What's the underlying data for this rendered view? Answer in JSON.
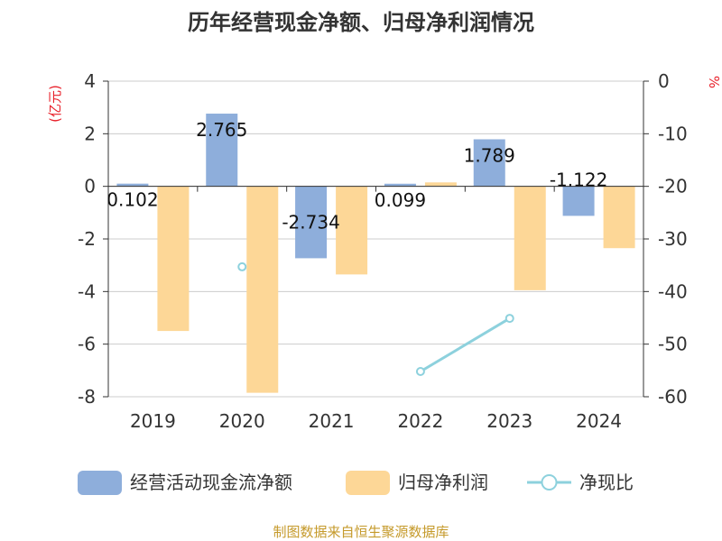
{
  "chart_data": {
    "type": "bar",
    "title": "历年经营现金净额、归母净利润情况",
    "categories": [
      "2019",
      "2020",
      "2021",
      "2022",
      "2023",
      "2024"
    ],
    "left_axis": {
      "label": "(亿元)",
      "ticks": [
        "4",
        "2",
        "0",
        "-2",
        "-4",
        "-6",
        "-8"
      ],
      "range": [
        -8,
        4
      ]
    },
    "right_axis": {
      "label": "%",
      "ticks": [
        "0",
        "-10",
        "-20",
        "-30",
        "-40",
        "-50",
        "-60"
      ],
      "range": [
        -60,
        0
      ]
    },
    "series": [
      {
        "name": "经营活动现金流净额",
        "type": "bar",
        "axis": "left",
        "color": "#8eaedb",
        "values": [
          0.102,
          2.765,
          -2.734,
          0.099,
          1.789,
          -1.122
        ],
        "labels": [
          "0.102",
          "2.765",
          "-2.734",
          "0.099",
          "1.789",
          "-1.122"
        ]
      },
      {
        "name": "归母净利润",
        "type": "bar",
        "axis": "left",
        "color": "#fdd797",
        "values": [
          -5.5,
          -7.85,
          -3.35,
          0.15,
          -3.95,
          -2.35
        ]
      },
      {
        "name": "净现比",
        "type": "line",
        "axis": "right",
        "color": "#8dd1dd",
        "values": [
          null,
          -35.3,
          null,
          -55.2,
          -45.1,
          null
        ]
      }
    ],
    "legend_position": "bottom",
    "grid": true
  },
  "source_note": "制图数据来自恒生聚源数据库"
}
